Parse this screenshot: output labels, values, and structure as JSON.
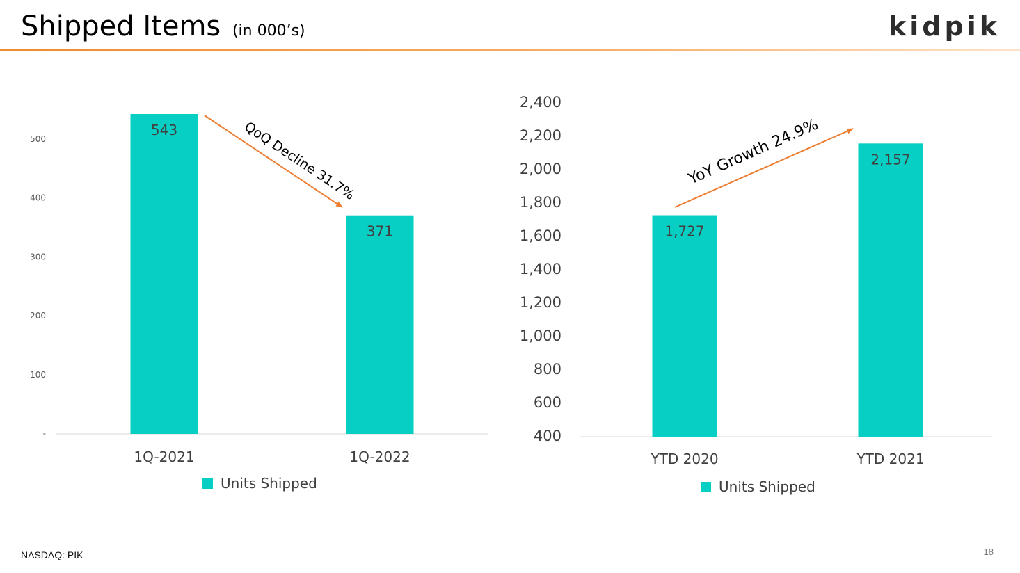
{
  "header": {
    "title": "Shipped Items",
    "subtitle": "(in 000’s)",
    "logo_text": "kidpik"
  },
  "footer": {
    "ticker": "NASDAQ: PIK",
    "page_number": "18"
  },
  "colors": {
    "bar": "#07CFC3",
    "arrow": "#ED7D31",
    "header_rule": "#F28A2E"
  },
  "chart_data": [
    {
      "type": "bar",
      "categories": [
        "1Q-2021",
        "1Q-2022"
      ],
      "series": [
        {
          "name": "Units Shipped",
          "values": [
            543,
            371
          ]
        }
      ],
      "data_labels": [
        "543",
        "371"
      ],
      "ylim": [
        0,
        543
      ],
      "yticks": [
        0,
        100,
        200,
        300,
        400,
        500
      ],
      "ytick_labels": [
        "-",
        "100",
        "200",
        "300",
        "400",
        "500"
      ],
      "annotation": "QoQ Decline 31.7%",
      "legend_label": "Units Shipped",
      "legend_position": "bottom",
      "grid": false
    },
    {
      "type": "bar",
      "categories": [
        "YTD 2020",
        "YTD 2021"
      ],
      "series": [
        {
          "name": "Units Shipped",
          "values": [
            1727,
            2157
          ]
        }
      ],
      "data_labels": [
        "1,727",
        "2,157"
      ],
      "ylim": [
        400,
        2400
      ],
      "yticks": [
        400,
        600,
        800,
        1000,
        1200,
        1400,
        1600,
        1800,
        2000,
        2200,
        2400
      ],
      "ytick_labels": [
        "400",
        "600",
        "800",
        "1,000",
        "1,200",
        "1,400",
        "1,600",
        "1,800",
        "2,000",
        "2,200",
        "2,400"
      ],
      "annotation": "YoY Growth 24.9%",
      "legend_label": "Units Shipped",
      "legend_position": "bottom",
      "grid": false
    }
  ]
}
